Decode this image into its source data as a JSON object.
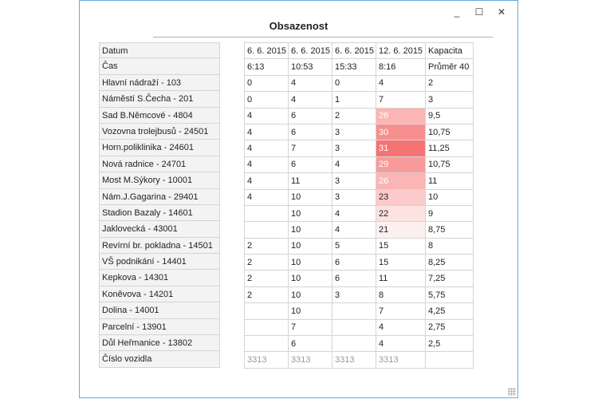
{
  "window": {
    "title": "Obsazenost",
    "minimize": "_",
    "maximize": "☐",
    "close": "✕"
  },
  "row_labels": [
    "Datum",
    "Čas",
    "Hlavní nádraží - 103",
    "Náměstí S.Čecha - 201",
    "Sad B.Němcové - 4804",
    "Vozovna trolejbusů - 24501",
    "Horn.poliklinika - 24601",
    "Nová radnice - 24701",
    "Most M.Sýkory - 10001",
    "Nám.J.Gagarina - 29401",
    "Stadion Bazaly - 14601",
    "Jaklovecká - 43001",
    "Revírní br. pokladna - 14501",
    "VŠ podnikání - 14401",
    "Kepkova - 14301",
    "Koněvova - 14201",
    "Dolina - 14001",
    "Parcelní - 13901",
    "Důl Heřmanice - 13802",
    "Číslo vozidla"
  ],
  "columns": [
    {
      "date": "6. 6. 2015",
      "time": "6:13",
      "values": [
        "0",
        "0",
        "4",
        "4",
        "4",
        "4",
        "4",
        "4",
        "",
        "",
        "2",
        "2",
        "2",
        "2",
        "",
        "",
        "",
        ""
      ],
      "vehicle": "3313"
    },
    {
      "date": "6. 6. 2015",
      "time": "10:53",
      "values": [
        "4",
        "4",
        "6",
        "6",
        "7",
        "6",
        "11",
        "10",
        "10",
        "10",
        "10",
        "10",
        "10",
        "10",
        "10",
        "7",
        "6",
        ""
      ],
      "vehicle": "3313"
    },
    {
      "date": "6. 6. 2015",
      "time": "15:33",
      "values": [
        "0",
        "1",
        "2",
        "3",
        "3",
        "4",
        "3",
        "3",
        "4",
        "4",
        "5",
        "6",
        "6",
        "3",
        "",
        "",
        "",
        ""
      ],
      "vehicle": "3313"
    },
    {
      "date": "12. 6. 2015",
      "time": "8:16",
      "values": [
        "4",
        "7",
        "26",
        "30",
        "31",
        "29",
        "26",
        "23",
        "22",
        "21",
        "15",
        "15",
        "11",
        "8",
        "7",
        "4",
        "4",
        ""
      ],
      "vehicle": "3313"
    },
    {
      "date": "Kapacita",
      "time": "Průměr 40",
      "values": [
        "2",
        "3",
        "9,5",
        "10,75",
        "11,25",
        "10,75",
        "11",
        "10",
        "9",
        "8,75",
        "8",
        "8,25",
        "7,25",
        "5,75",
        "4,25",
        "2,75",
        "2,5",
        ""
      ],
      "vehicle": ""
    }
  ],
  "highlight_colors": {
    "c21": "#fdf0f0",
    "c22": "#fde2e2",
    "c23": "#fccaca",
    "c26": "#fbb5b5",
    "c29": "#f99a9a",
    "c30": "#f88f8f",
    "c31": "#f67373"
  }
}
